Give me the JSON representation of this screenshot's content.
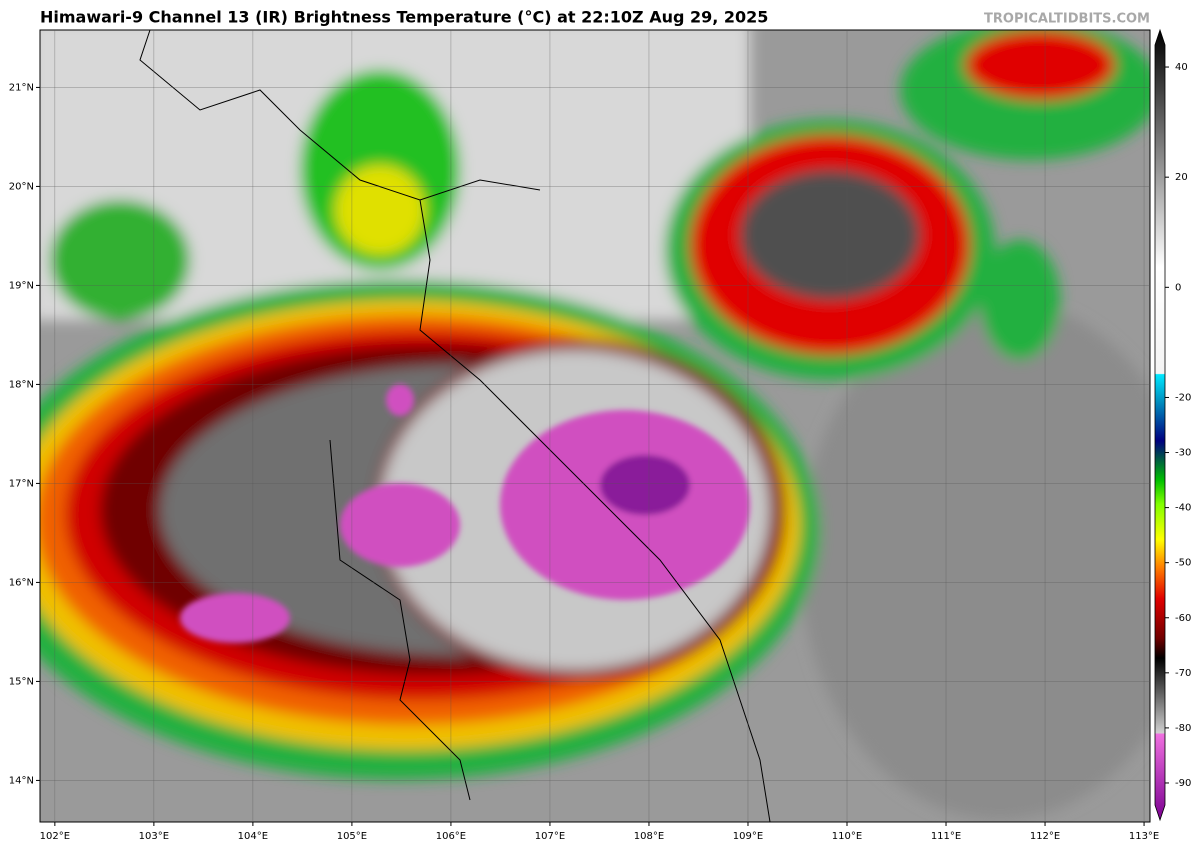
{
  "title": "Himawari-9 Channel 13 (IR) Brightness Temperature (°C) at 22:10Z Aug 29, 2025",
  "watermark": "TROPICALTIDBITS.COM",
  "map": {
    "lat_lim": [
      13.58,
      21.58
    ],
    "lon_lim": [
      101.85,
      113.06
    ],
    "lat_ticks": [
      {
        "value": 14,
        "label": "14°N"
      },
      {
        "value": 15,
        "label": "15°N"
      },
      {
        "value": 16,
        "label": "16°N"
      },
      {
        "value": 17,
        "label": "17°N"
      },
      {
        "value": 18,
        "label": "18°N"
      },
      {
        "value": 19,
        "label": "19°N"
      },
      {
        "value": 20,
        "label": "20°N"
      },
      {
        "value": 21,
        "label": "21°N"
      }
    ],
    "lon_ticks": [
      {
        "value": 102,
        "label": "102°E"
      },
      {
        "value": 103,
        "label": "103°E"
      },
      {
        "value": 104,
        "label": "104°E"
      },
      {
        "value": 105,
        "label": "105°E"
      },
      {
        "value": 106,
        "label": "106°E"
      },
      {
        "value": 107,
        "label": "107°E"
      },
      {
        "value": 108,
        "label": "108°E"
      },
      {
        "value": 109,
        "label": "109°E"
      },
      {
        "value": 110,
        "label": "110°E"
      },
      {
        "value": 111,
        "label": "111°E"
      },
      {
        "value": 112,
        "label": "112°E"
      },
      {
        "value": 113,
        "label": "113°E"
      }
    ]
  },
  "colorbar": {
    "lim": [
      -94,
      44
    ],
    "ticks": [
      40,
      20,
      0,
      -20,
      -30,
      -40,
      -50,
      -60,
      -70,
      -80,
      -90
    ]
  }
}
